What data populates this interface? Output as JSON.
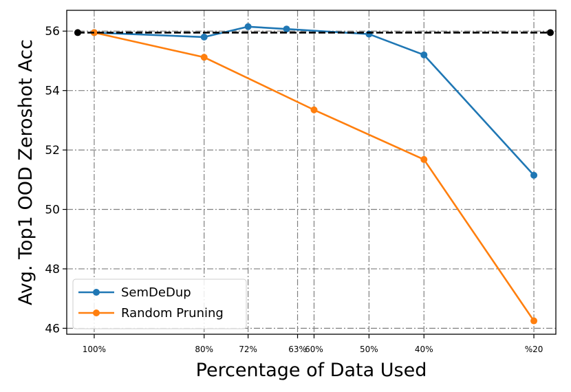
{
  "chart_data": {
    "type": "line",
    "xlabel": "Percentage of Data Used",
    "ylabel": "Avg. Top1 OOD Zeroshot Acc",
    "x_ticks": [
      "100%",
      "80%",
      "72%",
      "63%",
      "60%",
      "50%",
      "40%",
      "%20"
    ],
    "x_tick_values": [
      100,
      80,
      72,
      63,
      60,
      50,
      40,
      20
    ],
    "xlim": [
      105,
      16
    ],
    "ylim": [
      45.8,
      56.7
    ],
    "y_ticks": [
      46,
      48,
      50,
      52,
      54,
      56
    ],
    "grid": true,
    "legend_position": "lower-left",
    "series": [
      {
        "name": "SemDeDup",
        "color": "#1f77b4",
        "x": [
          100,
          80,
          72,
          65,
          50,
          40,
          20
        ],
        "y": [
          55.95,
          55.8,
          56.15,
          56.07,
          55.9,
          55.2,
          51.15
        ]
      },
      {
        "name": "Random Pruning",
        "color": "#ff7f0e",
        "x": [
          100,
          80,
          60,
          40,
          20
        ],
        "y": [
          55.95,
          55.12,
          53.35,
          51.68,
          46.25
        ]
      }
    ],
    "baseline": {
      "color": "#000000",
      "style": "dashed",
      "x": [
        103,
        17
      ],
      "y": [
        55.95,
        55.95
      ]
    }
  }
}
